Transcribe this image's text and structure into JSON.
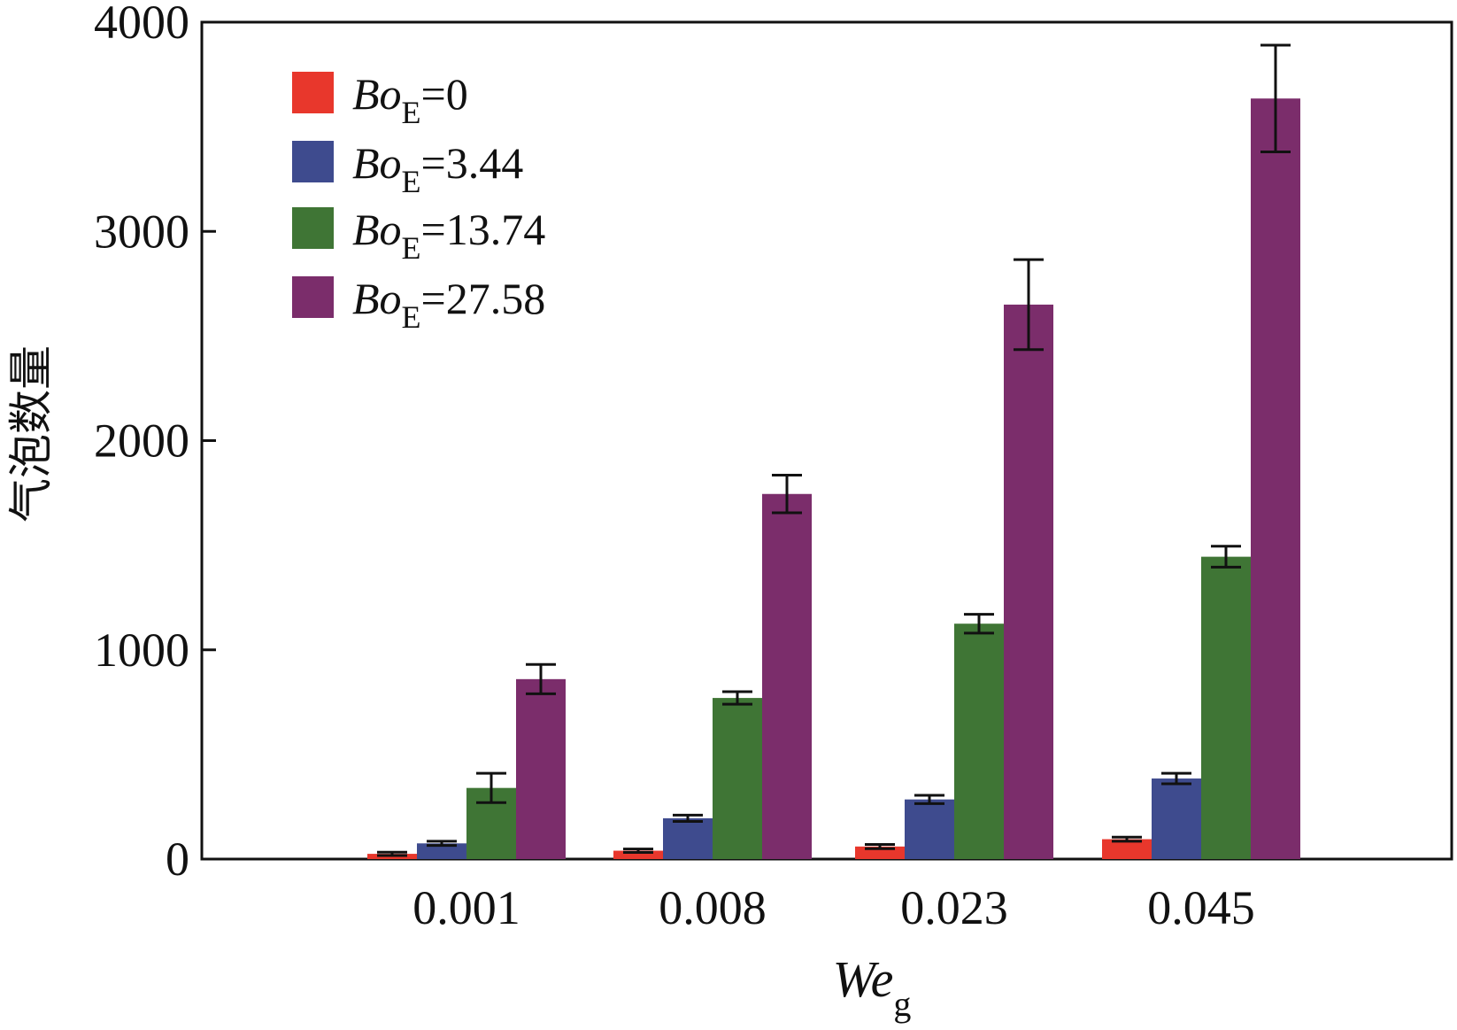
{
  "chart_data": {
    "type": "bar",
    "title": "",
    "xlabel": {
      "main": "We",
      "sub": "g"
    },
    "ylabel": "气泡数量",
    "ylim": [
      0,
      4000
    ],
    "yticks": [
      "0",
      "1000",
      "2000",
      "3000",
      "4000"
    ],
    "ytick_values": [
      0,
      1000,
      2000,
      3000,
      4000
    ],
    "categories": [
      "0.001",
      "0.008",
      "0.023",
      "0.045"
    ],
    "legend_position": "top-left",
    "series": [
      {
        "name": "BoE=0",
        "label_main": "Bo",
        "label_sub": "E",
        "label_value": "=0",
        "color": "#e8372c",
        "values": [
          25,
          40,
          60,
          95
        ],
        "errors": [
          8,
          8,
          10,
          10
        ]
      },
      {
        "name": "BoE=3.44",
        "label_main": "Bo",
        "label_sub": "E",
        "label_value": "=3.44",
        "color": "#3e4b8e",
        "values": [
          75,
          195,
          285,
          385
        ],
        "errors": [
          10,
          15,
          20,
          25
        ]
      },
      {
        "name": "BoE=13.74",
        "label_main": "Bo",
        "label_sub": "E",
        "label_value": "=13.74",
        "color": "#3f7535",
        "values": [
          340,
          770,
          1125,
          1445
        ],
        "errors": [
          70,
          30,
          45,
          50
        ]
      },
      {
        "name": "BoE=27.58",
        "label_main": "Bo",
        "label_sub": "E",
        "label_value": "=27.58",
        "color": "#7b2d6b",
        "values": [
          860,
          1745,
          2650,
          3635
        ],
        "errors": [
          70,
          90,
          215,
          255
        ]
      }
    ]
  }
}
